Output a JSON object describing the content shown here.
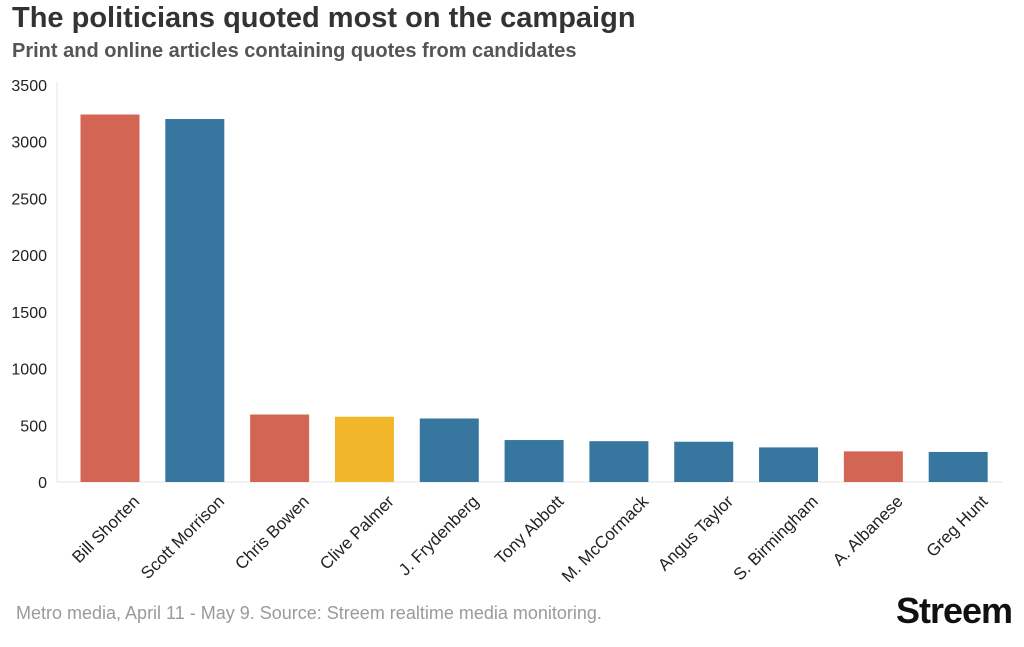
{
  "title": "The politicians quoted most on the campaign",
  "subtitle": "Print and online articles containing quotes from candidates",
  "footer": {
    "source": "Metro media, April 11 - May 9. Source: Streem realtime media monitoring.",
    "brand": "Streem"
  },
  "colors": {
    "labor": "#d26553",
    "coalition": "#37779f",
    "uap": "#f1b629",
    "axis_text": "#222222",
    "grid": "#e6e6e6"
  },
  "chart_data": {
    "type": "bar",
    "categories": [
      "Bill Shorten",
      "Scott Morrison",
      "Chris Bowen",
      "Clive Palmer",
      "J. Frydenberg",
      "Tony Abbott",
      "M. McCormack",
      "Angus Taylor",
      "S. Birmingham",
      "A. Albanese",
      "Greg Hunt"
    ],
    "values": [
      3240,
      3200,
      595,
      575,
      560,
      370,
      360,
      355,
      305,
      270,
      265
    ],
    "bar_colors": [
      "#d26553",
      "#37779f",
      "#d26553",
      "#f1b629",
      "#37779f",
      "#37779f",
      "#37779f",
      "#37779f",
      "#37779f",
      "#d26553",
      "#37779f"
    ],
    "yticks": [
      "0",
      "500",
      "1000",
      "1500",
      "2000",
      "2500",
      "3000",
      "3500"
    ],
    "ylim": [
      0,
      3500
    ],
    "xlabel": "",
    "ylabel": "",
    "grid": false
  }
}
